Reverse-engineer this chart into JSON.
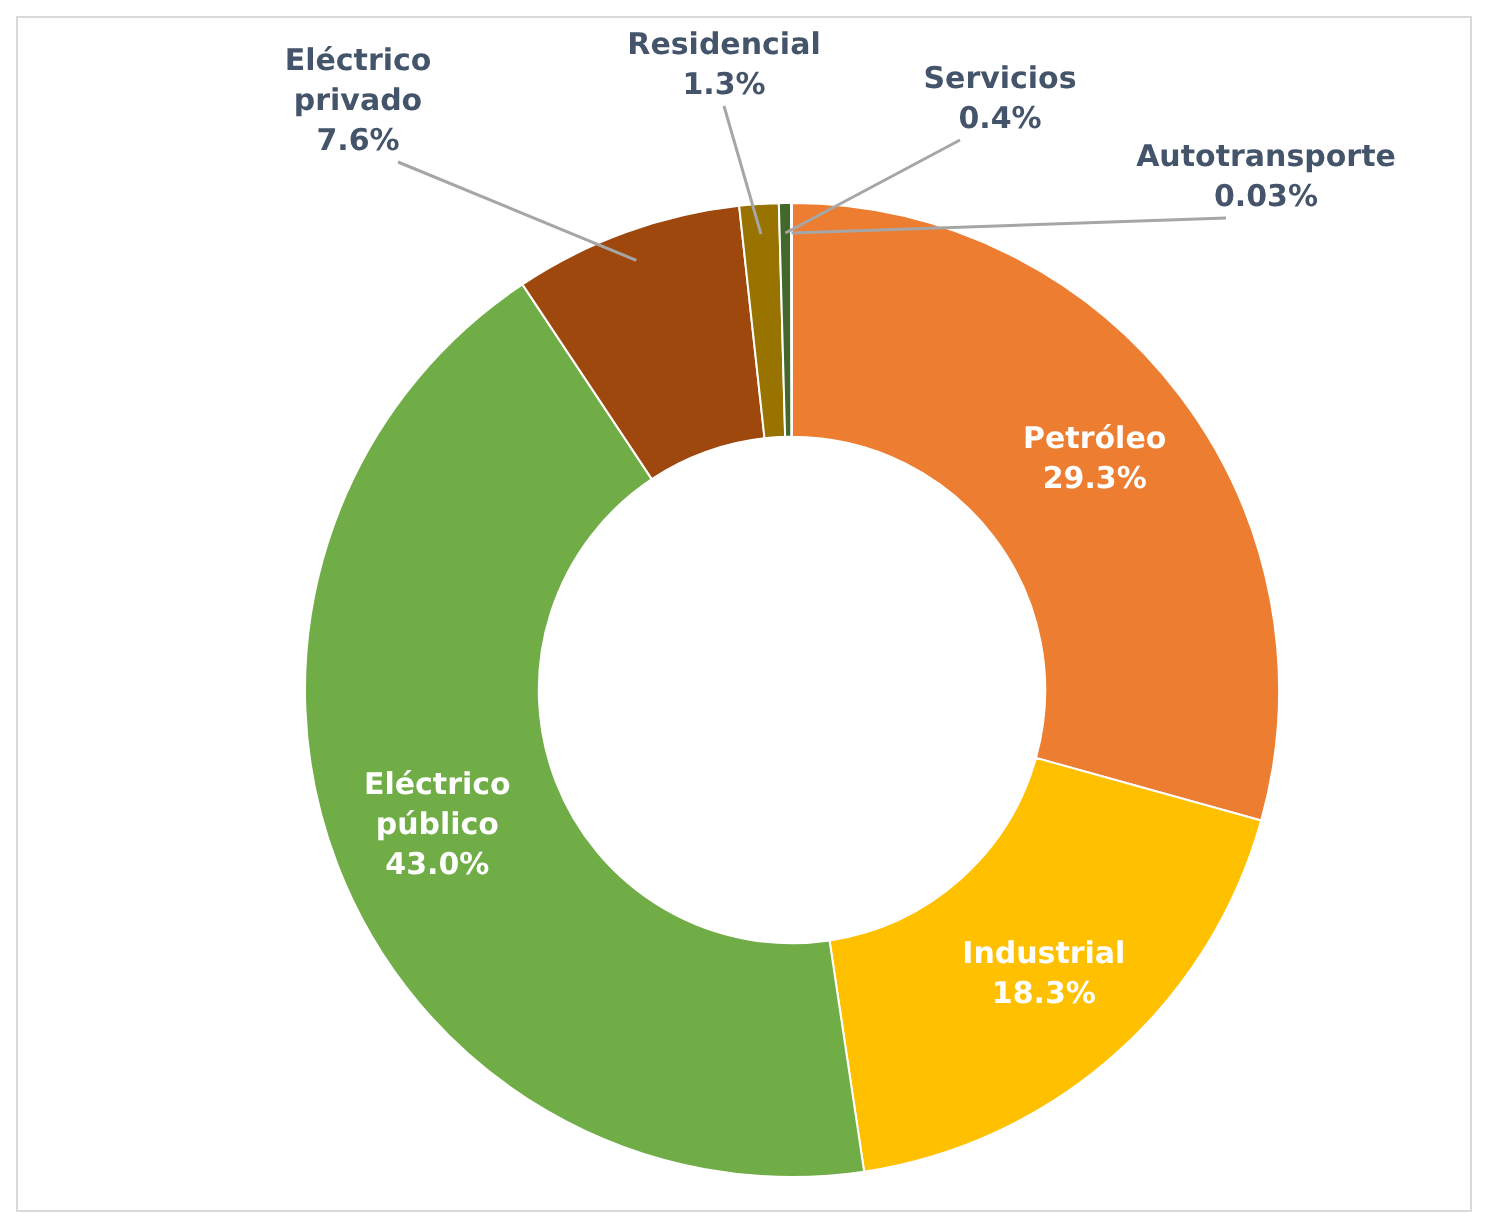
{
  "chart_data": {
    "type": "donut",
    "categories": [
      "Petróleo",
      "Industrial",
      "Eléctrico público",
      "Eléctrico privado",
      "Residencial",
      "Servicios",
      "Autotransporte"
    ],
    "values": [
      29.3,
      18.3,
      43.0,
      7.6,
      1.3,
      0.4,
      0.03
    ],
    "value_labels": [
      "29.3%",
      "18.3%",
      "43.0%",
      "7.6%",
      "1.3%",
      "0.4%",
      "0.03%"
    ],
    "colors": [
      "#ed7d31",
      "#ffc000",
      "#70ad47",
      "#9e480e",
      "#997300",
      "#43682b",
      "#a5a5a5"
    ],
    "legend": false
  }
}
